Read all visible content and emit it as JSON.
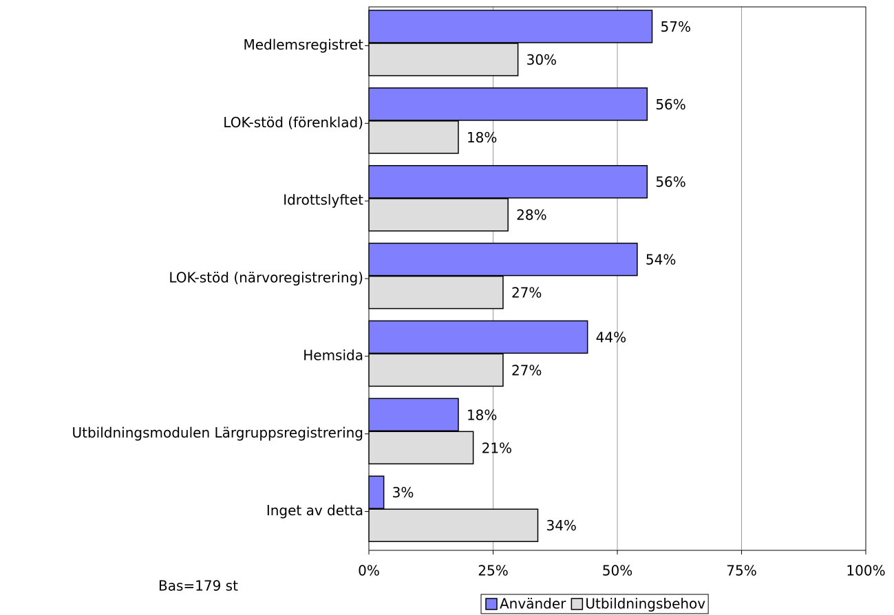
{
  "chart_data": {
    "type": "bar",
    "orientation": "horizontal",
    "categories": [
      "Medlemsregistret",
      "LOK-stöd (förenklad)",
      "Idrottslyftet",
      "LOK-stöd (närvoregistrering)",
      "Hemsida",
      "Utbildningsmodulen Lärgruppsregistrering",
      "Inget av detta"
    ],
    "series": [
      {
        "name": "Använder",
        "color": "#8080ff",
        "values": [
          57,
          56,
          56,
          54,
          44,
          18,
          3
        ],
        "value_labels": [
          "57%",
          "56%",
          "56%",
          "54%",
          "44%",
          "18%",
          "3%"
        ]
      },
      {
        "name": "Utbildningsbehov",
        "color": "#dddddd",
        "values": [
          30,
          18,
          28,
          27,
          27,
          21,
          34
        ],
        "value_labels": [
          "30%",
          "18%",
          "28%",
          "27%",
          "27%",
          "21%",
          "34%"
        ]
      }
    ],
    "xlim": [
      0,
      100
    ],
    "xticks": [
      {
        "value": 0,
        "label": "0%"
      },
      {
        "value": 25,
        "label": "25%"
      },
      {
        "value": 50,
        "label": "50%"
      },
      {
        "value": 75,
        "label": "75%"
      },
      {
        "value": 100,
        "label": "100%"
      }
    ],
    "grid": true,
    "legend": "bottom",
    "footnote": "Bas=179 st"
  }
}
